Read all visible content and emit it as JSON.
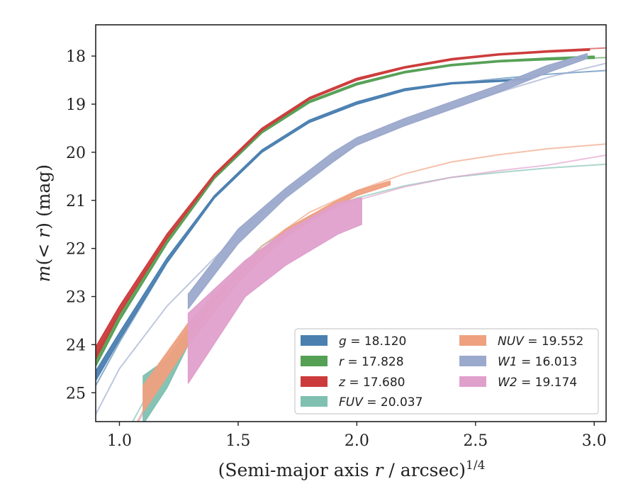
{
  "chart_data": {
    "type": "line",
    "xlabel": "(Semi-major axis r / arcsec)",
    "xlabel_parts": {
      "pre": "(Semi-major axis ",
      "var": "r",
      "post": " / arcsec)",
      "sup": "1/4"
    },
    "ylabel": "m(< r) (mag)",
    "ylabel_parts": {
      "var1": "m",
      "mid": "(< ",
      "var2": "r",
      "post": ") (mag)"
    },
    "xlim": [
      0.9,
      3.05
    ],
    "ylim": [
      25.6,
      17.35
    ],
    "y_inverted": true,
    "x_ticks": [
      "1.0",
      "1.5",
      "2.0",
      "2.5",
      "3.0"
    ],
    "y_ticks": [
      "18",
      "19",
      "20",
      "21",
      "22",
      "23",
      "24",
      "25"
    ],
    "legend_position": "lower-right",
    "legend": [
      {
        "var": "g",
        "text": " = 18.120",
        "color": "#4a7fb0"
      },
      {
        "var": "r",
        "text": " = 17.828",
        "color": "#55a055"
      },
      {
        "var": "z",
        "text": " = 17.680",
        "color": "#cc3b3b"
      },
      {
        "var": "FUV",
        "text": " = 20.037",
        "color": "#7fc0b0"
      },
      {
        "var": "NUV",
        "text": " = 19.552",
        "color": "#eea07f"
      },
      {
        "var": "W1",
        "text": " = 16.013",
        "color": "#9ba9cc"
      },
      {
        "var": "W2",
        "text": " = 19.174",
        "color": "#e0a0cc"
      }
    ],
    "series": [
      {
        "name": "g",
        "color": "#4a7fb0",
        "model": [
          [
            0.9,
            24.85
          ],
          [
            1.0,
            23.95
          ],
          [
            1.2,
            22.3
          ],
          [
            1.4,
            20.95
          ],
          [
            1.6,
            20.0
          ],
          [
            1.8,
            19.38
          ],
          [
            2.0,
            19.0
          ],
          [
            2.2,
            18.72
          ],
          [
            2.4,
            18.57
          ],
          [
            2.6,
            18.47
          ],
          [
            2.8,
            18.38
          ],
          [
            3.05,
            18.3
          ]
        ],
        "data": [
          [
            0.9,
            24.75,
            24.55
          ],
          [
            1.0,
            23.9,
            23.75
          ],
          [
            1.2,
            22.3,
            22.2
          ],
          [
            1.4,
            20.95,
            20.9
          ],
          [
            1.6,
            20.0,
            19.95
          ],
          [
            1.8,
            19.38,
            19.33
          ],
          [
            2.0,
            19.0,
            18.95
          ],
          [
            2.2,
            18.72,
            18.68
          ],
          [
            2.4,
            18.58,
            18.55
          ],
          [
            2.6,
            18.53,
            18.5
          ],
          [
            2.73,
            18.49,
            18.46
          ]
        ]
      },
      {
        "name": "r",
        "color": "#55a055",
        "model": [
          [
            0.9,
            24.45
          ],
          [
            1.0,
            23.5
          ],
          [
            1.2,
            21.9
          ],
          [
            1.4,
            20.55
          ],
          [
            1.6,
            19.6
          ],
          [
            1.8,
            18.97
          ],
          [
            2.0,
            18.6
          ],
          [
            2.2,
            18.35
          ],
          [
            2.4,
            18.2
          ],
          [
            2.6,
            18.12
          ],
          [
            2.8,
            18.07
          ],
          [
            3.05,
            18.03
          ]
        ],
        "data": [
          [
            0.9,
            24.45,
            24.2
          ],
          [
            1.0,
            23.5,
            23.35
          ],
          [
            1.2,
            21.9,
            21.8
          ],
          [
            1.4,
            20.55,
            20.5
          ],
          [
            1.6,
            19.6,
            19.55
          ],
          [
            1.8,
            18.97,
            18.93
          ],
          [
            2.0,
            18.6,
            18.56
          ],
          [
            2.2,
            18.35,
            18.32
          ],
          [
            2.4,
            18.2,
            18.17
          ],
          [
            2.6,
            18.12,
            18.09
          ],
          [
            2.8,
            18.08,
            18.04
          ],
          [
            3.0,
            18.05,
            18.0
          ]
        ]
      },
      {
        "name": "z",
        "color": "#cc3b3b",
        "model": [
          [
            0.9,
            24.3
          ],
          [
            1.0,
            23.35
          ],
          [
            1.2,
            21.8
          ],
          [
            1.4,
            20.5
          ],
          [
            1.6,
            19.55
          ],
          [
            1.8,
            18.9
          ],
          [
            2.0,
            18.5
          ],
          [
            2.2,
            18.25
          ],
          [
            2.4,
            18.08
          ],
          [
            2.6,
            17.97
          ],
          [
            2.8,
            17.89
          ],
          [
            3.05,
            17.83
          ]
        ],
        "data": [
          [
            0.9,
            24.3,
            24.05
          ],
          [
            1.0,
            23.35,
            23.2
          ],
          [
            1.2,
            21.8,
            21.7
          ],
          [
            1.4,
            20.5,
            20.45
          ],
          [
            1.6,
            19.55,
            19.5
          ],
          [
            1.8,
            18.9,
            18.86
          ],
          [
            2.0,
            18.5,
            18.46
          ],
          [
            2.2,
            18.25,
            18.22
          ],
          [
            2.4,
            18.08,
            18.05
          ],
          [
            2.6,
            17.98,
            17.95
          ],
          [
            2.8,
            17.92,
            17.89
          ],
          [
            2.98,
            17.88,
            17.85
          ]
        ]
      },
      {
        "name": "FUV",
        "color": "#7fc0b0",
        "model": [
          [
            1.0,
            26.1
          ],
          [
            1.2,
            24.3
          ],
          [
            1.4,
            22.9
          ],
          [
            1.6,
            21.95
          ],
          [
            1.8,
            21.35
          ],
          [
            2.0,
            20.95
          ],
          [
            2.2,
            20.7
          ],
          [
            2.4,
            20.52
          ],
          [
            2.6,
            20.42
          ],
          [
            2.8,
            20.33
          ],
          [
            3.05,
            20.25
          ]
        ],
        "data": [
          [
            1.1,
            25.65,
            24.65
          ],
          [
            1.2,
            24.9,
            24.3
          ],
          [
            1.29,
            24.0,
            23.7
          ]
        ]
      },
      {
        "name": "NUV",
        "color": "#eea07f",
        "model": [
          [
            1.0,
            26.3
          ],
          [
            1.2,
            24.45
          ],
          [
            1.4,
            23.0
          ],
          [
            1.6,
            21.95
          ],
          [
            1.8,
            21.25
          ],
          [
            2.0,
            20.8
          ],
          [
            2.2,
            20.45
          ],
          [
            2.4,
            20.2
          ],
          [
            2.6,
            20.05
          ],
          [
            2.8,
            19.93
          ],
          [
            3.05,
            19.83
          ]
        ],
        "data": [
          [
            1.1,
            25.4,
            24.85
          ],
          [
            1.29,
            24.0,
            23.55
          ],
          [
            1.5,
            22.7,
            22.45
          ],
          [
            1.7,
            21.75,
            21.6
          ],
          [
            1.9,
            21.15,
            21.05
          ],
          [
            2.0,
            20.9,
            20.8
          ],
          [
            2.14,
            20.68,
            20.6
          ]
        ]
      },
      {
        "name": "W1",
        "color": "#9ba9cc",
        "model": [
          [
            0.9,
            25.45
          ],
          [
            1.0,
            24.5
          ],
          [
            1.2,
            23.2
          ],
          [
            1.4,
            22.2
          ],
          [
            1.6,
            21.25
          ],
          [
            1.8,
            20.45
          ],
          [
            2.0,
            19.85
          ],
          [
            2.2,
            19.45
          ],
          [
            2.4,
            19.1
          ],
          [
            2.6,
            18.75
          ],
          [
            2.8,
            18.45
          ],
          [
            3.05,
            18.15
          ]
        ],
        "data": [
          [
            1.29,
            23.25,
            22.95
          ],
          [
            1.5,
            21.9,
            21.6
          ],
          [
            1.7,
            20.95,
            20.75
          ],
          [
            1.9,
            20.2,
            20.0
          ],
          [
            2.0,
            19.85,
            19.7
          ],
          [
            2.2,
            19.45,
            19.3
          ],
          [
            2.4,
            19.1,
            18.95
          ],
          [
            2.6,
            18.75,
            18.6
          ],
          [
            2.8,
            18.35,
            18.2
          ],
          [
            2.97,
            18.05,
            17.95
          ]
        ]
      },
      {
        "name": "W2",
        "color": "#e0a0cc",
        "model": [
          [
            1.0,
            26.3
          ],
          [
            1.2,
            24.55
          ],
          [
            1.4,
            23.05
          ],
          [
            1.6,
            22.05
          ],
          [
            1.8,
            21.4
          ],
          [
            2.0,
            21.0
          ],
          [
            2.2,
            20.72
          ],
          [
            2.4,
            20.52
          ],
          [
            2.6,
            20.38
          ],
          [
            2.8,
            20.27
          ],
          [
            3.05,
            20.06
          ]
        ],
        "data": [
          [
            1.29,
            24.8,
            23.35
          ],
          [
            1.53,
            23.0,
            22.25
          ],
          [
            1.7,
            22.35,
            21.65
          ],
          [
            1.92,
            21.7,
            21.05
          ],
          [
            2.02,
            21.5,
            20.95
          ]
        ]
      }
    ]
  }
}
